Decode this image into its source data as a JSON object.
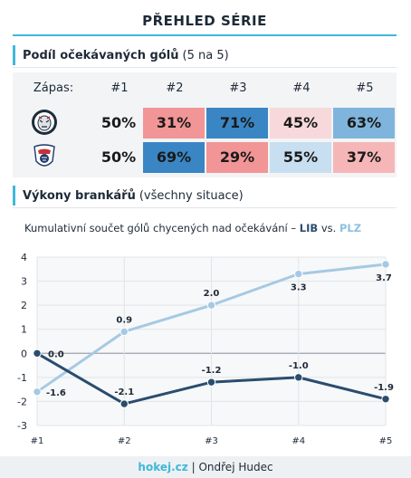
{
  "header": {
    "title": "PŘEHLED SÉRIE"
  },
  "xg_section": {
    "title_bold": "Podíl očekávaných gólů",
    "title_rest": "(5 na 5)"
  },
  "xg_table": {
    "row_label": "Zápas:",
    "games": [
      "#1",
      "#2",
      "#3",
      "#4",
      "#5"
    ],
    "teams": [
      {
        "logo": "liberec-tiger-logo",
        "values": [
          "50%",
          "31%",
          "71%",
          "45%",
          "63%"
        ],
        "colors": [
          "#f3f4f5",
          "#f29596",
          "#3a86c4",
          "#f7d9db",
          "#7fb4dc"
        ]
      },
      {
        "logo": "plzen-logo",
        "values": [
          "50%",
          "69%",
          "29%",
          "55%",
          "37%"
        ],
        "colors": [
          "#f3f4f5",
          "#3a86c4",
          "#f29596",
          "#c7dff0",
          "#f6b6b8"
        ]
      }
    ]
  },
  "gk_section": {
    "title_bold": "Výkony brankářů",
    "title_rest": "(všechny situace)"
  },
  "chart_sub": {
    "prefix": "Kumulativní součet gólů chycených nad očekávání –",
    "lib": "LIB",
    "vs": "vs.",
    "plz": "PLZ"
  },
  "chart_data": {
    "type": "line",
    "categories": [
      "#1",
      "#2",
      "#3",
      "#4",
      "#5"
    ],
    "ylim": [
      -3,
      4
    ],
    "yticks": [
      -3,
      -2,
      -1,
      0,
      1,
      2,
      3,
      4
    ],
    "grid": true,
    "series": [
      {
        "name": "LIB",
        "color": "#2a4d6e",
        "values": [
          0.0,
          -2.1,
          -1.2,
          -1.0,
          -1.9
        ],
        "labels": [
          "0.0",
          "-2.1",
          "-1.2",
          "-1.0",
          "-1.9"
        ]
      },
      {
        "name": "PLZ",
        "color": "#a6c9e3",
        "values": [
          -1.6,
          0.9,
          2.0,
          3.3,
          3.7
        ],
        "labels": [
          "-1.6",
          "0.9",
          "2.0",
          "3.3",
          "3.7"
        ]
      }
    ]
  },
  "footer": {
    "brand": "hokej.cz",
    "author": "Ondřej Hudec"
  }
}
